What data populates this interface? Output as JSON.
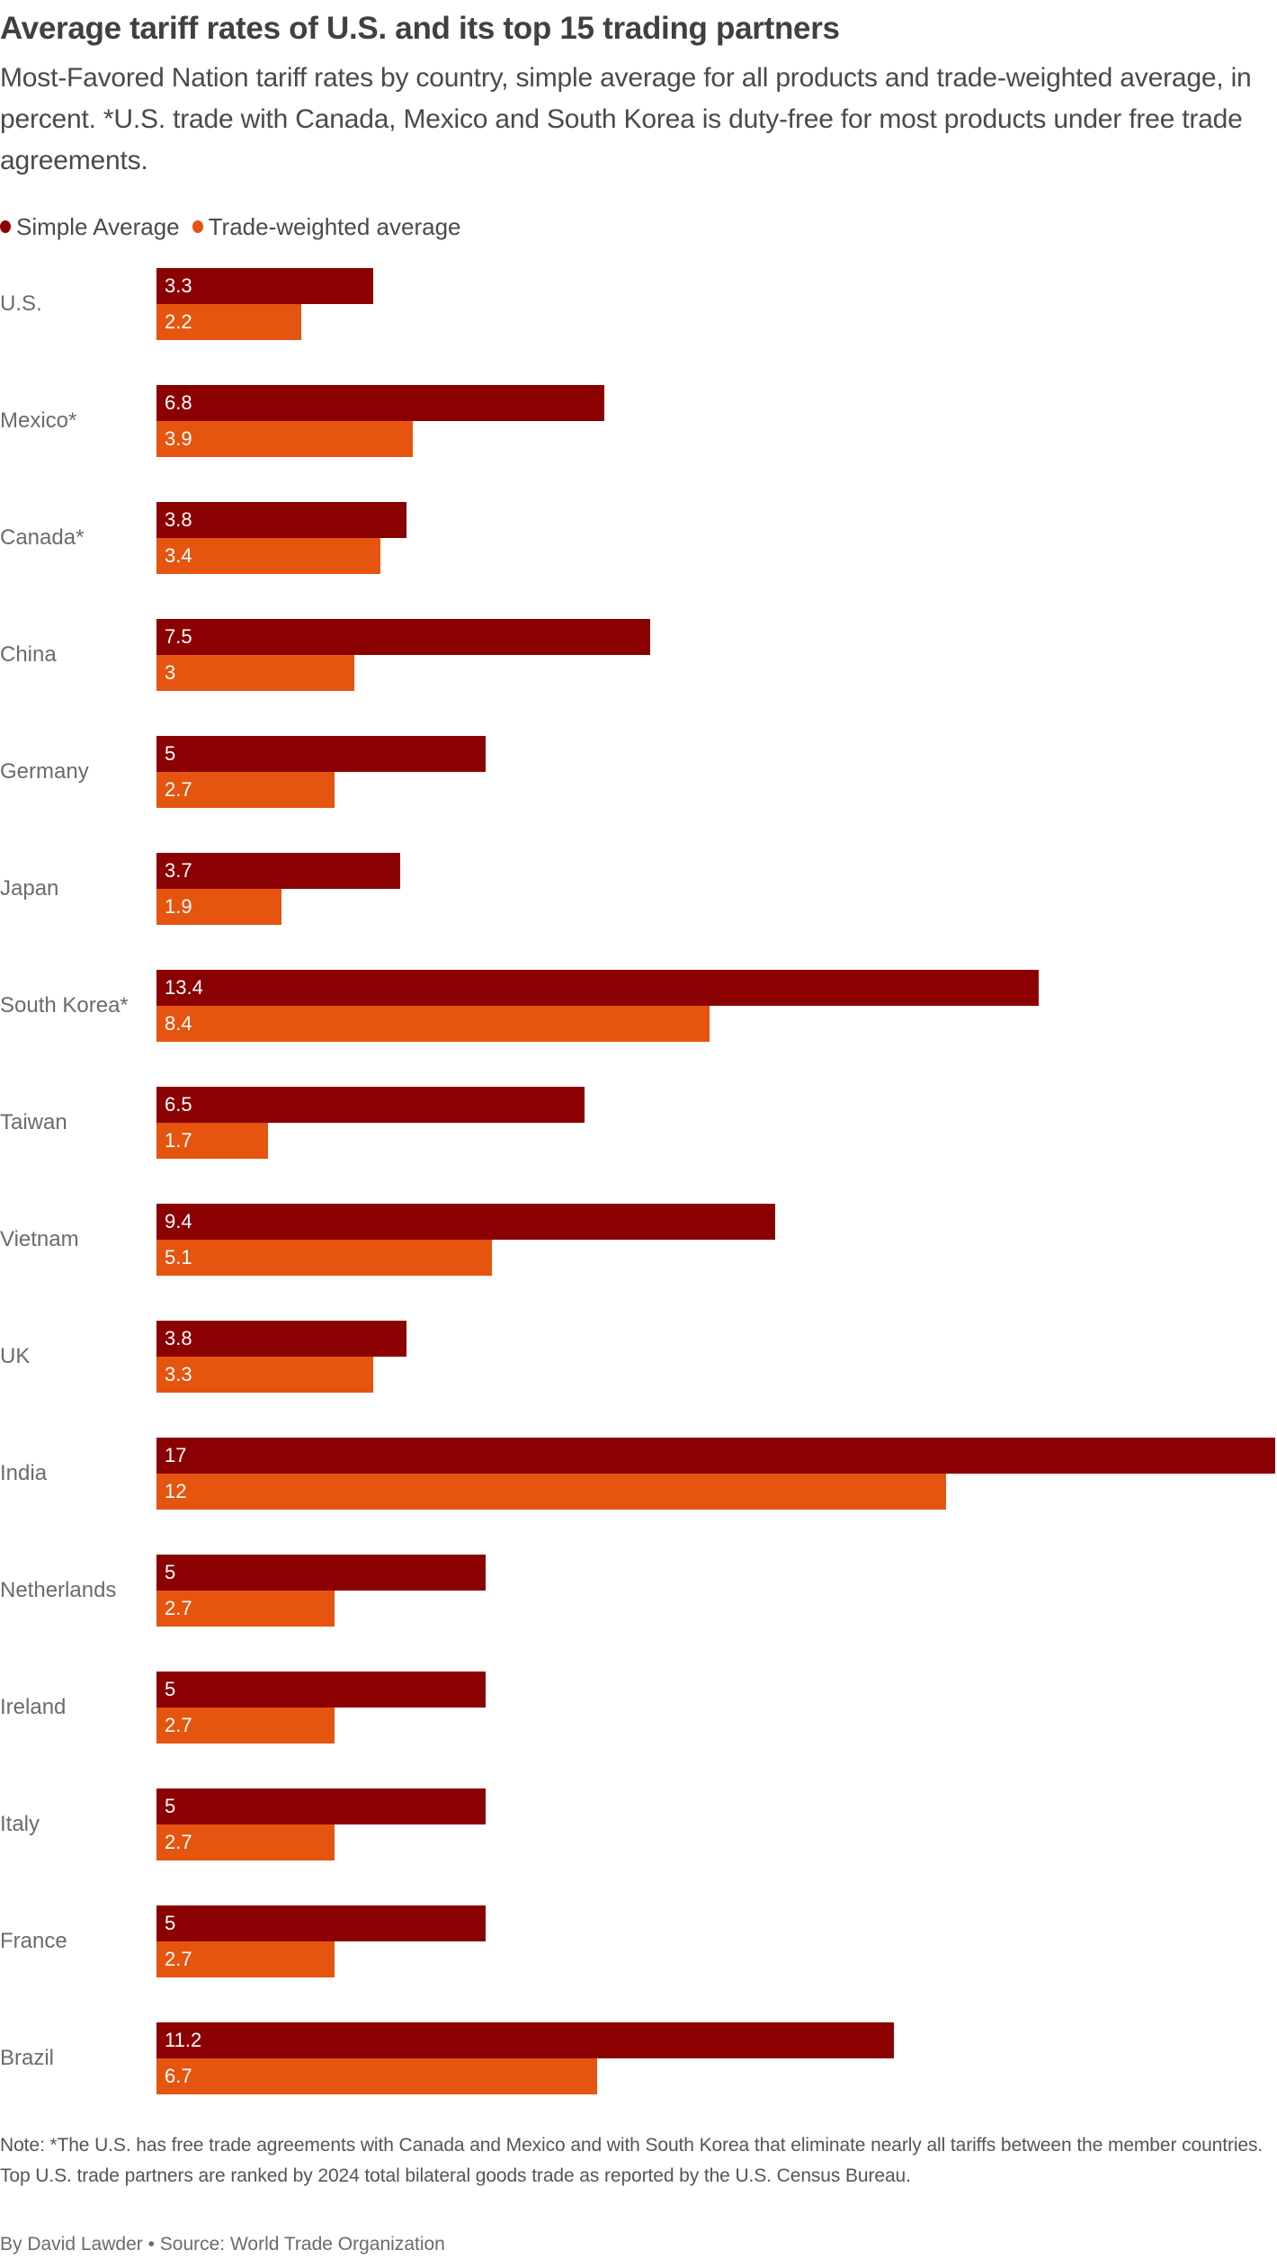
{
  "header": {
    "title": "Average tariff rates of U.S. and its top 15 trading partners",
    "subtitle": "Most-Favored Nation tariff rates by country, simple average for all products and trade-weighted average, in percent. *U.S. trade with Canada, Mexico and South Korea is duty-free for most products under free trade agreements."
  },
  "legend": [
    {
      "label": "Simple Average",
      "color": "#8b0000"
    },
    {
      "label": "Trade-weighted average",
      "color": "#e5550f"
    }
  ],
  "chart_data": {
    "type": "bar",
    "orientation": "horizontal",
    "title": "Average tariff rates of U.S. and its top 15 trading partners",
    "subtitle": "Most-Favored Nation tariff rates by country, simple average for all products and trade-weighted average, in percent. *U.S. trade with Canada, Mexico and South Korea is duty-free for most products under free trade agreements.",
    "xlabel": "",
    "ylabel": "",
    "xlim": [
      0,
      17
    ],
    "grid": false,
    "legend_position": "top-left",
    "categories": [
      "U.S.",
      "Mexico*",
      "Canada*",
      "China",
      "Germany",
      "Japan",
      "South Korea*",
      "Taiwan",
      "Vietnam",
      "UK",
      "India",
      "Netherlands",
      "Ireland",
      "Italy",
      "France",
      "Brazil"
    ],
    "series": [
      {
        "name": "Simple Average",
        "color": "#8b0000",
        "values": [
          3.3,
          6.8,
          3.8,
          7.5,
          5,
          3.7,
          13.4,
          6.5,
          9.4,
          3.8,
          17,
          5,
          5,
          5,
          5,
          11.2
        ]
      },
      {
        "name": "Trade-weighted average",
        "color": "#e5550f",
        "values": [
          2.2,
          3.9,
          3.4,
          3,
          2.7,
          1.9,
          8.4,
          1.7,
          5.1,
          3.3,
          12,
          2.7,
          2.7,
          2.7,
          2.7,
          6.7
        ]
      }
    ],
    "value_labels": [
      {
        "simple": "3.3",
        "weighted": "2.2"
      },
      {
        "simple": "6.8",
        "weighted": "3.9"
      },
      {
        "simple": "3.8",
        "weighted": "3.4"
      },
      {
        "simple": "7.5",
        "weighted": "3"
      },
      {
        "simple": "5",
        "weighted": "2.7"
      },
      {
        "simple": "3.7",
        "weighted": "1.9"
      },
      {
        "simple": "13.4",
        "weighted": "8.4"
      },
      {
        "simple": "6.5",
        "weighted": "1.7"
      },
      {
        "simple": "9.4",
        "weighted": "5.1"
      },
      {
        "simple": "3.8",
        "weighted": "3.3"
      },
      {
        "simple": "17",
        "weighted": "12"
      },
      {
        "simple": "5",
        "weighted": "2.7"
      },
      {
        "simple": "5",
        "weighted": "2.7"
      },
      {
        "simple": "5",
        "weighted": "2.7"
      },
      {
        "simple": "5",
        "weighted": "2.7"
      },
      {
        "simple": "11.2",
        "weighted": "6.7"
      }
    ]
  },
  "footer": {
    "note": "Note: *The U.S. has free trade agreements with Canada and Mexico and with South Korea that eliminate nearly all tariffs between the member countries. Top U.S. trade partners are ranked by 2024 total bilateral goods trade as reported by the U.S. Census Bureau.",
    "byline": "By David Lawder • Source: World Trade Organization"
  }
}
